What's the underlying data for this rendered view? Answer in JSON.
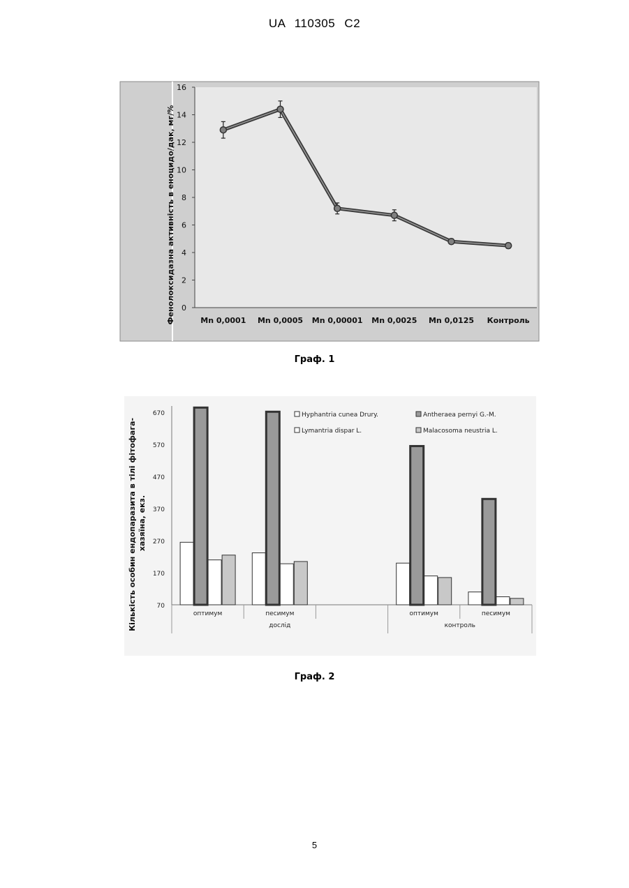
{
  "header": {
    "doc_number": "UA   110305   C2"
  },
  "chart1_caption": "Граф. 1",
  "chart2_caption": "Граф. 2",
  "page_number": "5",
  "chart_data": [
    {
      "type": "line",
      "title": "",
      "xlabel": "",
      "ylabel": "Фенолоксидазна активність в еноцидо/дак, мг/%",
      "categories": [
        "Mn 0,0001",
        "Mn 0,0005",
        "Mn 0,00001",
        "Mn 0,0025",
        "Mn 0,0125",
        "Контроль"
      ],
      "series": [
        {
          "values": [
            12.9,
            14.4,
            7.2,
            6.7,
            4.8,
            4.5
          ],
          "errors": [
            0.6,
            0.6,
            0.4,
            0.4,
            0.2,
            0.2
          ]
        }
      ],
      "ylim": [
        0,
        16
      ],
      "yticks": [
        0,
        2,
        4,
        6,
        8,
        10,
        12,
        14,
        16
      ],
      "grid": false,
      "legend": "none",
      "colors": {
        "plot_bg": "#e6e6e6",
        "frame_bg": "#c9c9c9",
        "line": "#3a3a3a",
        "marker": "#808080"
      }
    },
    {
      "type": "bar",
      "title": "",
      "ylabel": "Кількість особин ендопаразита в тілі фітофага-хазяїна, екз.",
      "groups": [
        {
          "label": "дослід",
          "subgroups": [
            "оптимум",
            "песимум",
            ""
          ]
        },
        {
          "label": "контроль",
          "subgroups": [
            "оптимум",
            "песимум"
          ]
        }
      ],
      "categories": [
        "оптимум",
        "песимум",
        "",
        "оптимум",
        "песимум"
      ],
      "series": [
        {
          "name": "Hyphantria cunea Drury.",
          "values": [
            265,
            232,
            null,
            200,
            110
          ],
          "color": "#ffffff"
        },
        {
          "name": "Antheraea pernyi G.-M.",
          "values": [
            685,
            672,
            null,
            565,
            400
          ],
          "color": "#9a9a9a"
        },
        {
          "name": "Lymantria dispar L.",
          "values": [
            210,
            198,
            null,
            160,
            95
          ],
          "color": "#ffffff"
        },
        {
          "name": "Malacosoma neustria L.",
          "values": [
            225,
            205,
            null,
            155,
            90
          ],
          "color": "#c8c8c8"
        }
      ],
      "ylim": [
        70,
        690
      ],
      "yticks": [
        70,
        170,
        270,
        370,
        470,
        570,
        670
      ],
      "grid": false,
      "legend": "top-right"
    }
  ]
}
